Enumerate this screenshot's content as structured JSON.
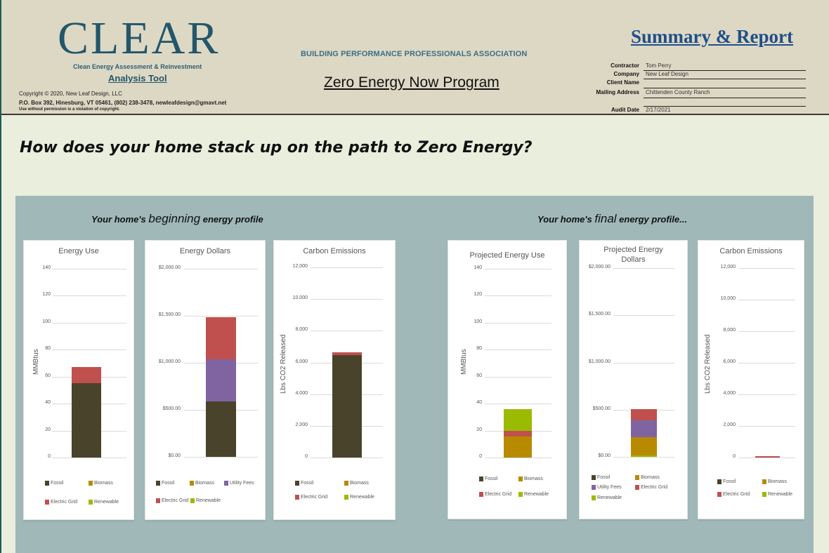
{
  "header": {
    "logo": "CLEAR",
    "logo_subtitle": "Clean Energy Assessment & Reinvestment",
    "logo_tool": "Analysis Tool",
    "copyright": "Copyright © 2020, New Leaf Design, LLC",
    "address": "P.O. Box 392, Hinesburg, VT  05461, (802) 238-3478, newleafdesign@gmavt.net",
    "notice": "Use without permission is a violation of copyright.",
    "association": "BUILDING PERFORMANCE PROFESSIONALS ASSOCIATION",
    "program": "Zero Energy Now Program",
    "report_title": "Summary & Report",
    "info": [
      {
        "label": "Contractor",
        "value": "Tom Perry"
      },
      {
        "label": "Company",
        "value": "New Leaf Design"
      },
      {
        "label": "Client Name",
        "value": ""
      },
      {
        "label": "Mailing Address",
        "value": "Chittenden County Ranch"
      },
      {
        "label": "",
        "value": ""
      },
      {
        "label": "Audit Date",
        "value": "2/17/2021"
      }
    ]
  },
  "question": "How does your home stack up on the path to Zero Energy?",
  "profiles": {
    "beginning": {
      "pre": "Your home's ",
      "big": "beginning",
      "post": "  energy profile"
    },
    "final": {
      "pre": "Your home's ",
      "big": "final",
      "post": "  energy profile..."
    }
  },
  "colors": {
    "Fossil": "#4a432c",
    "Biomass": "#b88a00",
    "Utility Fees": "#8064a2",
    "Electric Grid": "#c0504d",
    "Renewable": "#9bbb00"
  },
  "chart_data": [
    {
      "type": "bar",
      "stacked": true,
      "group": "beginning",
      "title": "Energy Use",
      "ylabel": "MMBtus",
      "ylim": [
        0,
        140
      ],
      "ticks": [
        "140",
        "120",
        "100",
        "80",
        "60",
        "40",
        "20",
        "0"
      ],
      "series": [
        {
          "name": "Fossil",
          "values": [
            55
          ]
        },
        {
          "name": "Biomass",
          "values": [
            0
          ]
        },
        {
          "name": "Electric Grid",
          "values": [
            12
          ]
        },
        {
          "name": "Renewable",
          "values": [
            0
          ]
        }
      ],
      "legend": [
        "Fossil",
        "Biomass",
        "Electric Grid",
        "Renewable"
      ]
    },
    {
      "type": "bar",
      "stacked": true,
      "group": "beginning",
      "title": "Energy Dollars",
      "ylabel": "",
      "ylim": [
        0,
        2000
      ],
      "ticks": [
        "$2,000.00",
        "$1,500.00",
        "$1,000.00",
        "$500.00",
        "$0.00"
      ],
      "series": [
        {
          "name": "Fossil",
          "values": [
            590
          ]
        },
        {
          "name": "Biomass",
          "values": [
            0
          ]
        },
        {
          "name": "Utility Fees",
          "values": [
            447
          ]
        },
        {
          "name": "Electric Grid",
          "values": [
            448
          ]
        },
        {
          "name": "Renewable",
          "values": [
            0
          ]
        }
      ],
      "legend": [
        "Fossil",
        "Biomass",
        "Utility Fees",
        "Electric Grid",
        "Renewable"
      ]
    },
    {
      "type": "bar",
      "stacked": true,
      "group": "beginning",
      "title": "Carbon Emissions",
      "ylabel": "Lbs CO2 Released",
      "ylim": [
        0,
        12000
      ],
      "ticks": [
        "12,000",
        "10,000",
        "8,000",
        "6,000",
        "4,000",
        "2,000",
        "0"
      ],
      "series": [
        {
          "name": "Fossil",
          "values": [
            6470
          ]
        },
        {
          "name": "Biomass",
          "values": [
            0
          ]
        },
        {
          "name": "Electric Grid",
          "values": [
            170
          ]
        },
        {
          "name": "Renewable",
          "values": [
            0
          ]
        }
      ],
      "legend": [
        "Fossil",
        "Biomass",
        "Electric Grid",
        "Renewable"
      ]
    },
    {
      "type": "bar",
      "stacked": true,
      "group": "final",
      "title": "Projected Energy Use",
      "ylabel": "MMBtus",
      "ylim": [
        0,
        140
      ],
      "ticks": [
        "140",
        "120",
        "100",
        "80",
        "60",
        "40",
        "20",
        "0"
      ],
      "series": [
        {
          "name": "Fossil",
          "values": [
            0
          ]
        },
        {
          "name": "Biomass",
          "values": [
            15.5
          ]
        },
        {
          "name": "Electric Grid",
          "values": [
            4.5
          ]
        },
        {
          "name": "Renewable",
          "values": [
            16
          ]
        }
      ],
      "legend": [
        "Fossil",
        "Biomass",
        "Electric Grid",
        "Renewable"
      ]
    },
    {
      "type": "bar",
      "stacked": true,
      "group": "final",
      "title": "Projected Energy Dollars",
      "ylabel": "",
      "ylim": [
        0,
        2000
      ],
      "ticks": [
        "$2,000.00",
        "$1,500.00",
        "$1,000.00",
        "$500.00",
        "$0.00"
      ],
      "series": [
        {
          "name": "Renewable",
          "values": [
            15
          ]
        },
        {
          "name": "Fossil",
          "values": [
            0
          ]
        },
        {
          "name": "Biomass",
          "values": [
            193
          ]
        },
        {
          "name": "Utility Fees",
          "values": [
            179
          ]
        },
        {
          "name": "Electric Grid",
          "values": [
            118
          ]
        }
      ],
      "legend": [
        "Fossil",
        "Biomass",
        "Utility Fees",
        "Electric Grid",
        "Renewable"
      ]
    },
    {
      "type": "bar",
      "stacked": true,
      "group": "final",
      "title": "Carbon Emissions",
      "ylabel": "Lbs CO2 Released",
      "ylim": [
        0,
        12000
      ],
      "ticks": [
        "12,000",
        "10,000",
        "8,000",
        "6,000",
        "4,000",
        "2,000",
        "0"
      ],
      "series": [
        {
          "name": "Fossil",
          "values": [
            0
          ]
        },
        {
          "name": "Biomass",
          "values": [
            0
          ]
        },
        {
          "name": "Electric Grid",
          "values": [
            100
          ]
        },
        {
          "name": "Renewable",
          "values": [
            0
          ]
        }
      ],
      "legend": [
        "Fossil",
        "Biomass",
        "Electric Grid",
        "Renewable"
      ]
    }
  ]
}
